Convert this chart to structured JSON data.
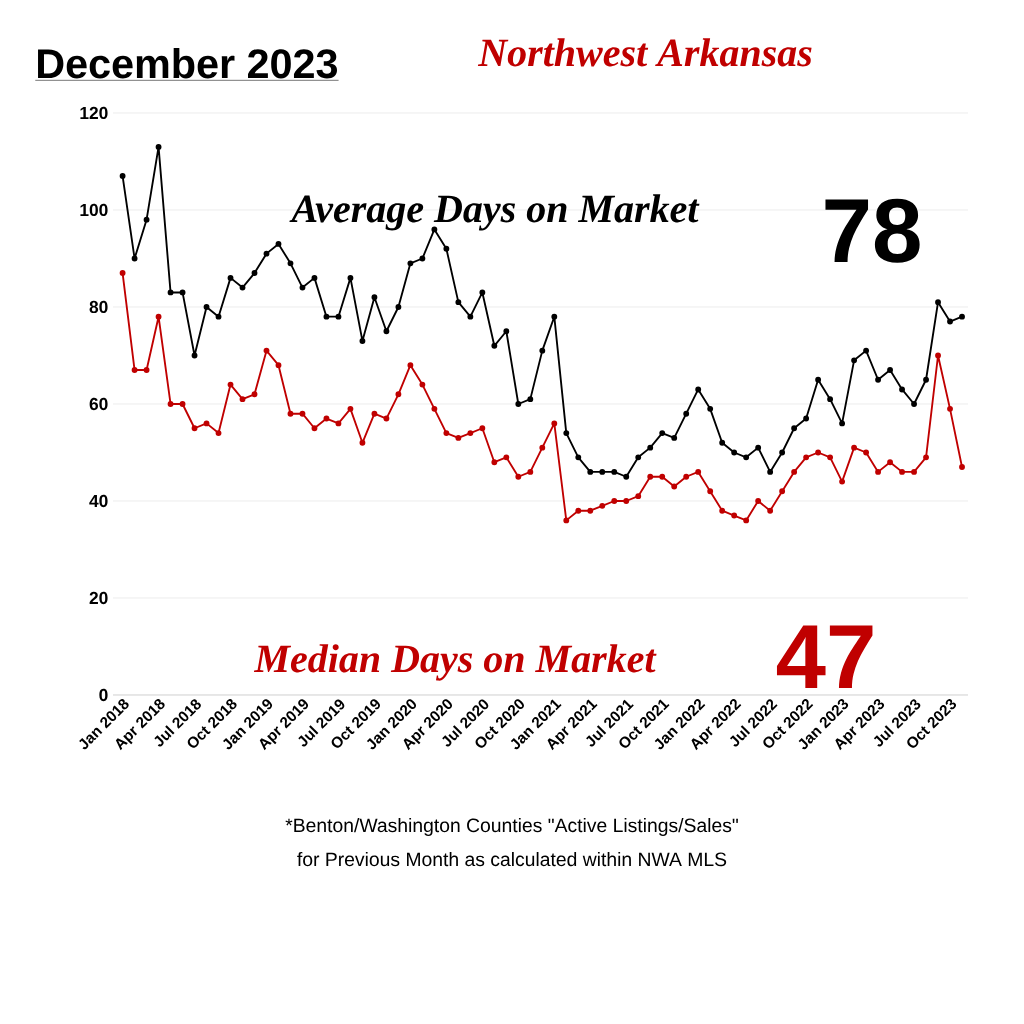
{
  "chart_data": {
    "type": "line",
    "title": "December 2023",
    "subtitle": "Northwest Arkansas",
    "categories": [
      "Jan 2018",
      null,
      null,
      "Apr 2018",
      null,
      null,
      "Jul 2018",
      null,
      null,
      "Oct 2018",
      null,
      null,
      "Jan 2019",
      null,
      null,
      "Apr 2019",
      null,
      null,
      "Jul 2019",
      null,
      null,
      "Oct 2019",
      null,
      null,
      "Jan 2020",
      null,
      null,
      "Apr 2020",
      null,
      null,
      "Jul 2020",
      null,
      null,
      "Oct 2020",
      null,
      null,
      "Jan 2021",
      null,
      null,
      "Apr 2021",
      null,
      null,
      "Jul 2021",
      null,
      null,
      "Oct 2021",
      null,
      null,
      "Jan 2022",
      null,
      null,
      "Apr 2022",
      null,
      null,
      "Jul 2022",
      null,
      null,
      "Oct 2022",
      null,
      null,
      "Jan 2023",
      null,
      null,
      "Apr 2023",
      null,
      null,
      "Jul 2023",
      null,
      null,
      "Oct 2023",
      null
    ],
    "series": [
      {
        "name": "Average Days on Market",
        "color": "#000000",
        "values": [
          107,
          90,
          98,
          113,
          83,
          83,
          70,
          80,
          78,
          86,
          84,
          87,
          91,
          93,
          89,
          84,
          86,
          78,
          78,
          86,
          73,
          82,
          75,
          80,
          89,
          90,
          96,
          92,
          81,
          78,
          83,
          72,
          75,
          60,
          61,
          71,
          78,
          54,
          49,
          46,
          46,
          46,
          45,
          49,
          51,
          54,
          53,
          58,
          63,
          59,
          52,
          50,
          49,
          51,
          46,
          50,
          55,
          57,
          65,
          61,
          56,
          69,
          71,
          65,
          67,
          63,
          60,
          65,
          81,
          77,
          78
        ]
      },
      {
        "name": "Median Days on Market",
        "color": "#c00000",
        "values": [
          87,
          67,
          67,
          78,
          60,
          60,
          55,
          56,
          54,
          64,
          61,
          62,
          71,
          68,
          58,
          58,
          55,
          57,
          56,
          59,
          52,
          58,
          57,
          62,
          68,
          64,
          59,
          54,
          53,
          54,
          55,
          48,
          49,
          45,
          46,
          51,
          56,
          36,
          38,
          38,
          39,
          40,
          40,
          41,
          45,
          45,
          43,
          45,
          46,
          42,
          38,
          37,
          36,
          40,
          38,
          42,
          46,
          49,
          50,
          49,
          44,
          51,
          50,
          46,
          48,
          46,
          46,
          49,
          70,
          59,
          47
        ]
      }
    ],
    "ylim": [
      0,
      120
    ],
    "yticks": [
      0,
      20,
      40,
      60,
      80,
      100,
      120
    ],
    "grid": "y",
    "marker": "circle",
    "line_style": "solid",
    "annotations": [
      "78",
      "47",
      "*Benton/Washington Counties \"Active Listings/Sales\"",
      "for Previous Month as calculated within NWA MLS"
    ]
  }
}
